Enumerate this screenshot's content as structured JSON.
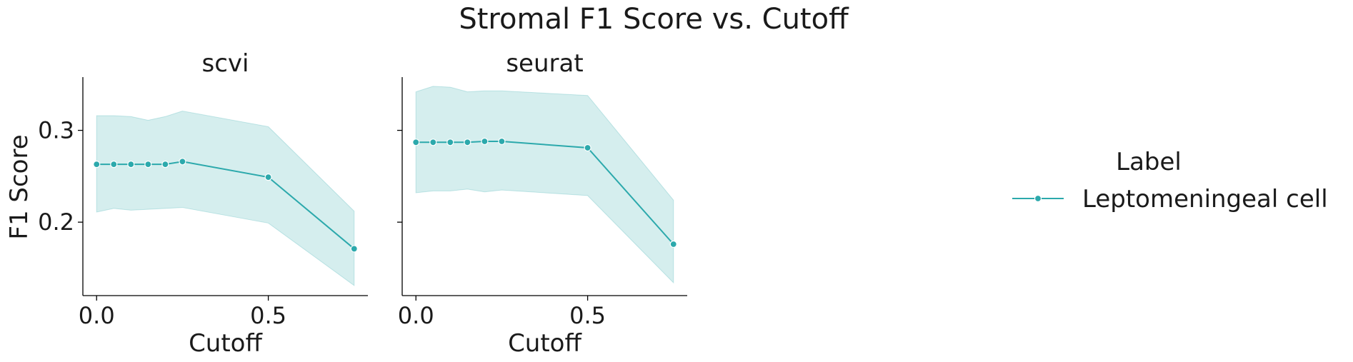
{
  "chart_data": {
    "type": "line",
    "title": "Stromal F1 Score vs. Cutoff",
    "ylabel": "F1 Score",
    "xlabel": "Cutoff",
    "xlim": [
      -0.04,
      0.79
    ],
    "ylim": [
      0.12,
      0.358
    ],
    "xticks": [
      0.0,
      0.5
    ],
    "xtick_labels": [
      "0.0",
      "0.5"
    ],
    "yticks": [
      0.2,
      0.3
    ],
    "ytick_labels": [
      "0.2",
      "0.3"
    ],
    "color": "#2ca9ac",
    "band_color": "#2ca9ac",
    "legend": {
      "title": "Label",
      "placement": "right",
      "entries": [
        "Leptomeningeal cell"
      ]
    },
    "panels": [
      {
        "title": "scvi",
        "series": [
          {
            "name": "Leptomeningeal cell",
            "x": [
              0.0,
              0.05,
              0.1,
              0.15,
              0.2,
              0.25,
              0.5,
              0.75
            ],
            "y": [
              0.263,
              0.263,
              0.263,
              0.263,
              0.263,
              0.266,
              0.249,
              0.171
            ],
            "upper": [
              0.316,
              0.316,
              0.315,
              0.311,
              0.315,
              0.321,
              0.304,
              0.212
            ],
            "lower": [
              0.211,
              0.215,
              0.213,
              0.214,
              0.215,
              0.216,
              0.199,
              0.131
            ]
          }
        ]
      },
      {
        "title": "seurat",
        "series": [
          {
            "name": "Leptomeningeal cell",
            "x": [
              0.0,
              0.05,
              0.1,
              0.15,
              0.2,
              0.25,
              0.5,
              0.75
            ],
            "y": [
              0.287,
              0.287,
              0.287,
              0.287,
              0.288,
              0.288,
              0.281,
              0.176
            ],
            "upper": [
              0.342,
              0.348,
              0.347,
              0.342,
              0.343,
              0.343,
              0.338,
              0.224
            ],
            "lower": [
              0.232,
              0.234,
              0.234,
              0.236,
              0.233,
              0.235,
              0.229,
              0.134
            ]
          }
        ]
      }
    ]
  }
}
